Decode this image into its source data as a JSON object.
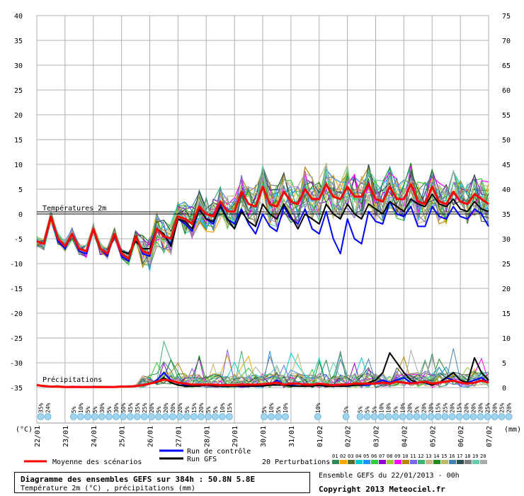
{
  "chart_data": {
    "type": "line",
    "left_axis_unit": "(°C)",
    "right_axis_unit": "(mm)",
    "temp_axis": {
      "ticks": [
        40,
        35,
        30,
        25,
        20,
        15,
        10,
        5,
        0,
        -5,
        -10,
        -15,
        -20,
        -25,
        -30,
        -35
      ],
      "ylim": [
        -35,
        40
      ]
    },
    "precip_axis": {
      "ticks": [
        75,
        70,
        65,
        60,
        55,
        50,
        45,
        40,
        35,
        30,
        25,
        20,
        15,
        10,
        5,
        0
      ],
      "ylim": [
        0,
        75
      ]
    },
    "x_tick_labels": [
      "22/01",
      "23/01",
      "24/01",
      "25/01",
      "26/01",
      "27/01",
      "28/01",
      "29/01",
      "30/01",
      "31/01",
      "01/02",
      "02/02",
      "03/02",
      "04/02",
      "05/02",
      "06/02",
      "07/02"
    ],
    "x_days": 16,
    "temp_section_label": "Températures 2m",
    "precip_section_label": "Précipitations",
    "snow_labels": [
      {
        "day": 0.04,
        "texts": [
          "35%",
          "24%"
        ]
      },
      {
        "day": 1.2,
        "texts": [
          "5%",
          "10%",
          "5%",
          "5%",
          "30%",
          "5%",
          "30%",
          "50%",
          "45%",
          "35%",
          "25%",
          "20%",
          "5%",
          "20%",
          "20%",
          "20%",
          "5%",
          "15%",
          "20%",
          "5%",
          "5%",
          "10%",
          "15%"
        ]
      },
      {
        "day": 7.95,
        "texts": [
          "5%",
          "10%",
          "5%",
          "10%"
        ]
      },
      {
        "day": 9.85,
        "texts": [
          "10%"
        ]
      },
      {
        "day": 10.85,
        "texts": [
          "5%"
        ]
      },
      {
        "day": 11.35,
        "texts": [
          "5%",
          "5%",
          "5%",
          "10%",
          "10%",
          "5%",
          "10%",
          "20%",
          "5%",
          "20%",
          "20%",
          "15%",
          "25%",
          "20%",
          "15%",
          "20%",
          "20%",
          "20%",
          "25%",
          "20%",
          "25%",
          "20%"
        ]
      }
    ],
    "series": [
      {
        "name": "Moyenne des scénarios",
        "color": "#ff0000",
        "temp": [
          -5.5,
          -6,
          -0.5,
          -5,
          -6.5,
          -4,
          -7,
          -7.5,
          -3,
          -7,
          -8,
          -4,
          -8,
          -9,
          -4.5,
          -7.5,
          -8,
          -3,
          -4.5,
          -5,
          -0.5,
          -1,
          -2,
          1.5,
          0,
          -0.5,
          2.5,
          0.5,
          0.5,
          4.5,
          2,
          1.5,
          5.5,
          2,
          1.5,
          4.5,
          2.5,
          2,
          5,
          3,
          3,
          6,
          3.5,
          3,
          5.5,
          3.5,
          3.5,
          6,
          3,
          2.5,
          5.5,
          3,
          3,
          6,
          2.5,
          2,
          5.5,
          2.5,
          2,
          4.5,
          2.5,
          2,
          4,
          3,
          2
        ],
        "precip": [
          0.5,
          0.3,
          0.2,
          0.2,
          0.1,
          0.1,
          0.1,
          0.1,
          0.1,
          0.1,
          0.1,
          0.1,
          0.2,
          0.2,
          0.3,
          0.5,
          0.8,
          1.2,
          1.6,
          1.4,
          1,
          0.8,
          0.6,
          0.6,
          0.6,
          0.6,
          0.5,
          0.5,
          0.5,
          0.6,
          0.6,
          0.6,
          0.7,
          0.8,
          1,
          0.6,
          0.8,
          0.8,
          0.6,
          0.6,
          0.8,
          0.6,
          0.5,
          0.6,
          0.6,
          0.8,
          0.8,
          0.8,
          0.8,
          1,
          0.8,
          1.2,
          1,
          0.8,
          1,
          1.2,
          0.8,
          1,
          1.2,
          1.4,
          1,
          0.8,
          1,
          1.4,
          1
        ]
      },
      {
        "name": "Run de contrôle",
        "color": "#0000ff",
        "temp": [
          -5.5,
          -6,
          -0.5,
          -5.5,
          -7,
          -4,
          -7.5,
          -8,
          -3,
          -7,
          -8.5,
          -4,
          -8.5,
          -9.5,
          -4.5,
          -8,
          -8.5,
          -3,
          -4.5,
          -6,
          -1,
          -2,
          -3.5,
          1,
          -1,
          -2,
          2,
          -1,
          -2,
          1,
          -2,
          -4,
          0,
          -2.5,
          -3.5,
          1.5,
          -1,
          -2,
          1,
          -3,
          -4,
          0.5,
          -5,
          -8,
          -1,
          -5,
          -6,
          0.5,
          -1.5,
          -2,
          2.5,
          0,
          -0.5,
          1.5,
          -2.5,
          -2.5,
          1.5,
          -0.5,
          -1,
          1.5,
          -0.5,
          -1,
          1,
          0,
          -2.5
        ],
        "precip": [
          0.5,
          0.3,
          0.2,
          0.2,
          0.1,
          0.1,
          0.1,
          0.1,
          0.1,
          0.1,
          0.1,
          0.1,
          0.2,
          0.2,
          0.3,
          0.5,
          0.8,
          1.5,
          3,
          1.5,
          1,
          0.5,
          0.3,
          0.3,
          0.5,
          0.5,
          0.3,
          0.3,
          0.5,
          0.3,
          0.3,
          0.3,
          0.5,
          0.5,
          1.5,
          0.5,
          0.5,
          0.3,
          0.3,
          0.3,
          0.5,
          0.3,
          0.3,
          0.3,
          0.3,
          0.5,
          0.5,
          0.5,
          1,
          1.5,
          1,
          1.5,
          2,
          1,
          1,
          1,
          0.5,
          1,
          2,
          1.5,
          1,
          1,
          1.5,
          2,
          1
        ]
      },
      {
        "name": "Run GFS",
        "color": "#000000",
        "temp": [
          -5.5,
          -6,
          -0.5,
          -5,
          -6.5,
          -4,
          -7,
          -7.5,
          -3,
          -7,
          -8,
          -4.5,
          -7.5,
          -8,
          -5.5,
          -7,
          -7,
          -3,
          -4,
          -6.5,
          -1,
          -1.5,
          -3,
          1,
          -1,
          -1.5,
          1.5,
          -1,
          -3,
          0.5,
          -1.5,
          -2.5,
          2,
          0,
          -1,
          2,
          -0.5,
          -3,
          0,
          -1,
          -2,
          2,
          0,
          -1,
          2,
          0,
          -1,
          2,
          1,
          0,
          2.5,
          1.5,
          0.5,
          3,
          2,
          1.5,
          4,
          2,
          1.5,
          3,
          1,
          0.5,
          2.5,
          1,
          0.5
        ],
        "precip": [
          0.5,
          0.3,
          0.2,
          0.2,
          0.1,
          0.1,
          0.1,
          0.1,
          0.1,
          0.1,
          0.1,
          0.1,
          0.2,
          0.2,
          0.3,
          0.5,
          0.8,
          1,
          2,
          1,
          0.5,
          0.3,
          0.3,
          0.3,
          0.5,
          0.3,
          0.3,
          0.3,
          0.3,
          0.3,
          0.3,
          0.3,
          0.3,
          0.5,
          0.5,
          0.5,
          0.3,
          0.3,
          0.3,
          0.3,
          0.5,
          0.3,
          0.3,
          0.3,
          0.3,
          0.5,
          0.5,
          1,
          1.5,
          3,
          7,
          5,
          3,
          1.5,
          1,
          1,
          0.5,
          1,
          2,
          3,
          1.5,
          1,
          6,
          3,
          1.5
        ]
      }
    ],
    "perturbations": {
      "count": 20,
      "colors": [
        "#2e8b57",
        "#ffa500",
        "#556b2f",
        "#00ced1",
        "#1e90ff",
        "#32cd32",
        "#9400d3",
        "#9acd32",
        "#ff00ff",
        "#b8860b",
        "#7b68ee",
        "#3cb371",
        "#d2b48c",
        "#228b22",
        "#bdb76b",
        "#4682b4",
        "#2f4f4f",
        "#808080",
        "#66cdaa",
        "#a9a9a9"
      ]
    }
  },
  "legend": {
    "control": "Run de contrôle",
    "gfs": "Run GFS",
    "mean": "Moyenne des scénarios",
    "perturbations_label": "20 Perturbations",
    "perturbation_numbers": [
      "01",
      "02",
      "03",
      "04",
      "05",
      "06",
      "07",
      "08",
      "09",
      "10",
      "11",
      "12",
      "13",
      "14",
      "15",
      "16",
      "17",
      "18",
      "19",
      "20"
    ]
  },
  "title_box": {
    "line1": "Diagramme des ensembles GEFS sur 384h : 50.8N 5.8E",
    "line2": "Température 2m (°C) , précipitations (mm)"
  },
  "footer": {
    "ensemble_info": "Ensemble GEFS du 22/01/2013 - 00h",
    "copyright": "Copyright 2013 Meteociel.fr"
  }
}
